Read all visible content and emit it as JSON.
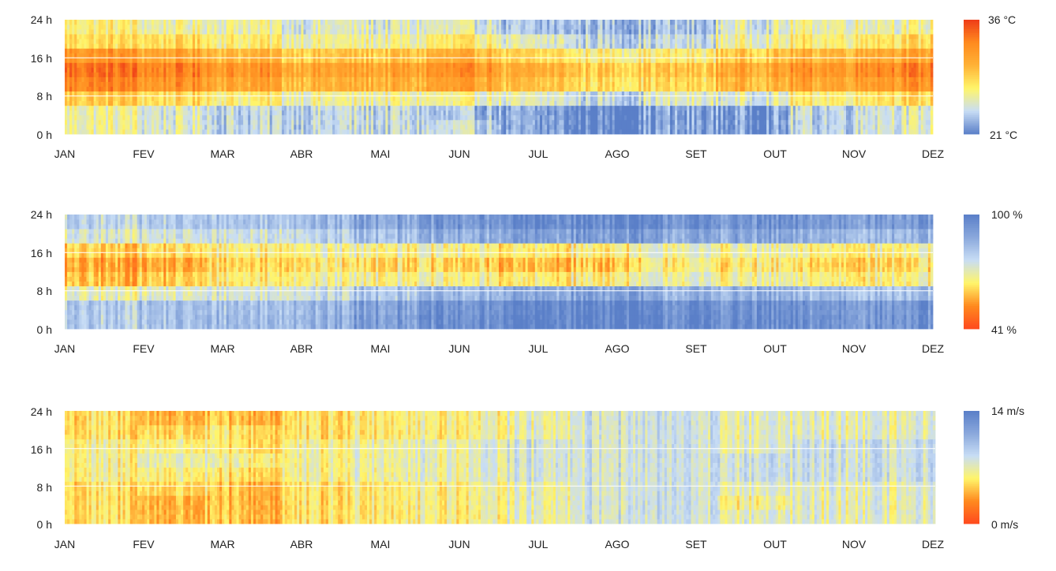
{
  "chart_data": [
    {
      "type": "heatmap",
      "x_label": "",
      "y_label": "",
      "x_ticks": [
        "JAN",
        "FEV",
        "MAR",
        "ABR",
        "MAI",
        "JUN",
        "JUL",
        "AGO",
        "SET",
        "OUT",
        "NOV",
        "DEZ"
      ],
      "y_ticks": [
        "0 h",
        "8 h",
        "16 h",
        "24 h"
      ],
      "colorbar": {
        "max_label": "36 °C",
        "min_label": "21 °C",
        "min": 21,
        "max": 36
      },
      "grid": true,
      "monthly_hour_values": [
        [
          26,
          26,
          29,
          33,
          34,
          32,
          28,
          27
        ],
        [
          25,
          25,
          28,
          32,
          33,
          31,
          28,
          26
        ],
        [
          24,
          24,
          27,
          31,
          32,
          30,
          27,
          26
        ],
        [
          24,
          24,
          26,
          30,
          31,
          29,
          26,
          25
        ],
        [
          24,
          24,
          26,
          30,
          31,
          29,
          26,
          25
        ],
        [
          24,
          23,
          26,
          31,
          32,
          30,
          27,
          25
        ],
        [
          22,
          22,
          25,
          29,
          30,
          28,
          25,
          23
        ],
        [
          21,
          21,
          24,
          28,
          29,
          27,
          24,
          23
        ],
        [
          22,
          22,
          25,
          28,
          29,
          27,
          24,
          23
        ],
        [
          22,
          22,
          25,
          30,
          31,
          29,
          26,
          25
        ],
        [
          24,
          24,
          27,
          31,
          32,
          30,
          27,
          26
        ],
        [
          25,
          25,
          28,
          32,
          33,
          31,
          28,
          26
        ]
      ],
      "colors": [
        "#5a7fc8",
        "#c8ddf5",
        "#fff56a",
        "#ffb236",
        "#ff8a1e",
        "#ee3c18"
      ],
      "legend_position": "right"
    },
    {
      "type": "heatmap",
      "x_label": "",
      "y_label": "",
      "x_ticks": [
        "JAN",
        "FEV",
        "MAR",
        "ABR",
        "MAI",
        "JUN",
        "JUL",
        "AGO",
        "SET",
        "OUT",
        "NOV",
        "DEZ"
      ],
      "y_ticks": [
        "0 h",
        "8 h",
        "16 h",
        "24 h"
      ],
      "colorbar": {
        "max_label": "100 %",
        "min_label": "41 %",
        "min": 41,
        "max": 100
      },
      "grid": true,
      "monthly_hour_values": [
        [
          80,
          80,
          70,
          58,
          55,
          60,
          73,
          78
        ],
        [
          82,
          82,
          72,
          60,
          56,
          62,
          74,
          80
        ],
        [
          84,
          83,
          74,
          65,
          62,
          66,
          76,
          82
        ],
        [
          86,
          85,
          76,
          68,
          64,
          68,
          78,
          84
        ],
        [
          92,
          91,
          82,
          68,
          63,
          68,
          84,
          90
        ],
        [
          94,
          93,
          84,
          66,
          60,
          66,
          86,
          92
        ],
        [
          98,
          97,
          88,
          64,
          58,
          64,
          90,
          96
        ],
        [
          99,
          98,
          90,
          66,
          60,
          66,
          92,
          97
        ],
        [
          96,
          95,
          86,
          70,
          66,
          70,
          88,
          94
        ],
        [
          95,
          94,
          86,
          68,
          64,
          68,
          88,
          93
        ],
        [
          94,
          93,
          84,
          66,
          62,
          66,
          86,
          92
        ],
        [
          93,
          92,
          82,
          66,
          62,
          66,
          84,
          91
        ]
      ],
      "colors": [
        "#ff4a1e",
        "#ff8a1e",
        "#fff56a",
        "#c8ddf5",
        "#8aa8dc",
        "#5a7fc8"
      ],
      "legend_position": "right"
    },
    {
      "type": "heatmap",
      "x_label": "",
      "y_label": "",
      "x_ticks": [
        "JAN",
        "FEV",
        "MAR",
        "ABR",
        "MAI",
        "JUN",
        "JUL",
        "AGO",
        "SET",
        "OUT",
        "NOV",
        "DEZ"
      ],
      "y_ticks": [
        "0 h",
        "8 h",
        "16 h",
        "24 h"
      ],
      "colorbar": {
        "max_label": "14 m/s",
        "min_label": "0 m/s",
        "min": 0,
        "max": 14
      },
      "grid": true,
      "monthly_hour_values": [
        [
          5,
          5,
          5,
          6,
          6,
          6,
          5,
          5
        ],
        [
          4,
          4,
          5,
          6,
          7,
          6,
          5,
          4
        ],
        [
          4,
          4,
          4,
          5,
          6,
          5,
          5,
          4
        ],
        [
          5,
          5,
          5,
          6,
          6,
          6,
          5,
          5
        ],
        [
          6,
          6,
          6,
          7,
          7,
          7,
          6,
          6
        ],
        [
          6,
          6,
          6,
          7,
          7,
          7,
          6,
          6
        ],
        [
          7,
          7,
          7,
          8,
          8,
          8,
          7,
          7
        ],
        [
          8,
          8,
          8,
          8,
          8,
          8,
          8,
          8
        ],
        [
          8,
          8,
          8,
          8,
          8,
          8,
          8,
          8
        ],
        [
          7,
          6,
          7,
          8,
          8,
          7,
          7,
          7
        ],
        [
          7,
          7,
          7,
          8,
          8,
          8,
          7,
          7
        ],
        [
          7,
          7,
          7,
          8,
          8,
          8,
          7,
          7
        ]
      ],
      "colors": [
        "#ff4a1e",
        "#ff8a1e",
        "#fff56a",
        "#c8ddf5",
        "#8aa8dc",
        "#5a7fc8"
      ],
      "legend_position": "right"
    }
  ]
}
